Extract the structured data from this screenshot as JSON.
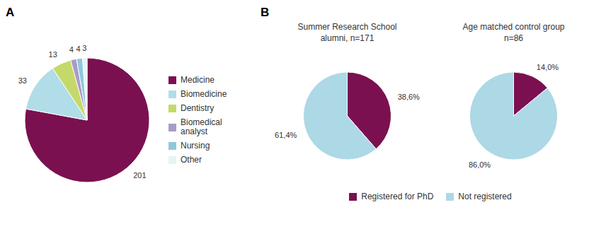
{
  "chart_data": [
    {
      "type": "pie",
      "annotations": [
        "A"
      ],
      "categories": [
        "Medicine",
        "Biomedicine",
        "Dentistry",
        "Biomedical\nanalyst",
        "Nursing",
        "Other"
      ],
      "values": [
        201,
        33,
        13,
        4,
        4,
        3
      ],
      "colors": [
        "#7B1050",
        "#B0DDE8",
        "#C5D96A",
        "#A89CC8",
        "#8FC8DC",
        "#E8F4F4"
      ],
      "data_labels": true,
      "legend": "right"
    },
    {
      "type": "pie",
      "annotations": [
        "B"
      ],
      "title": "Summer Research School\nalumni, n=171",
      "categories": [
        "Registered for PhD",
        "Not registered"
      ],
      "values": [
        38.6,
        61.4
      ],
      "value_labels": [
        "38,6%",
        "61,4%"
      ],
      "colors": [
        "#7B1050",
        "#ADD8E6"
      ],
      "data_labels": true,
      "legend": "bottom"
    },
    {
      "type": "pie",
      "title": "Age matched control group\nn=86",
      "categories": [
        "Registered for PhD",
        "Not registered"
      ],
      "values": [
        14.0,
        86.0
      ],
      "value_labels": [
        "14,0%",
        "86,0%"
      ],
      "colors": [
        "#7B1050",
        "#ADD8E6"
      ],
      "data_labels": true
    }
  ]
}
